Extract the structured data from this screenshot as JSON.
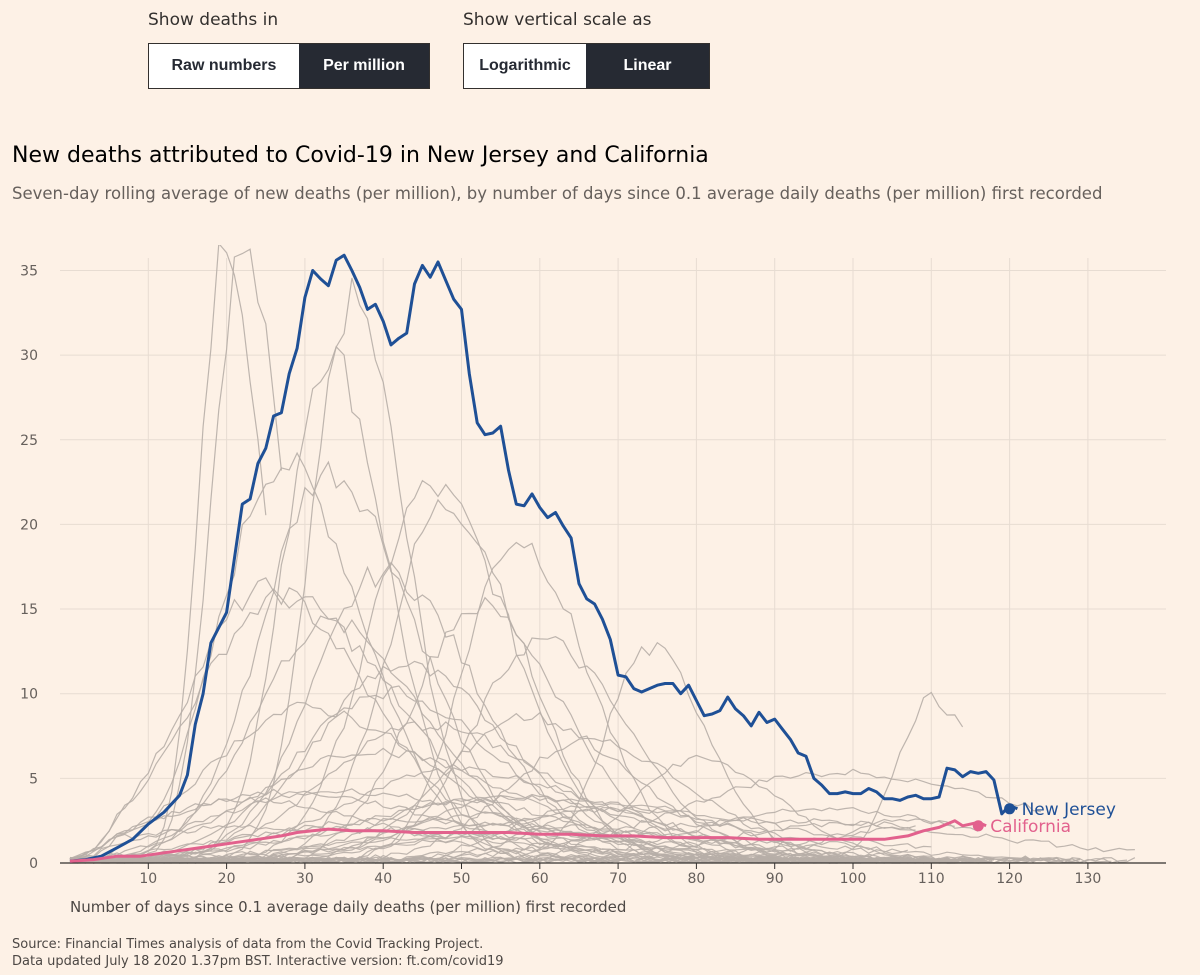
{
  "controls": {
    "deaths": {
      "label": "Show deaths in",
      "options": [
        "Raw numbers",
        "Per million"
      ],
      "selected": "Per million"
    },
    "scale": {
      "label": "Show vertical scale as",
      "options": [
        "Logarithmic",
        "Linear"
      ],
      "selected": "Linear"
    }
  },
  "colors": {
    "background": "#fdf1e6",
    "new_jersey": "#1f5096",
    "california": "#e2618d",
    "other_states": "#b7aea7",
    "selected_button": "#262a33"
  },
  "chart_data": {
    "type": "line",
    "title": "New deaths attributed to Covid-19 in New Jersey and California",
    "subtitle": "Seven-day rolling average of new deaths (per million), by number of days since 0.1 average daily deaths (per million) first recorded",
    "xlabel": "Number of days since 0.1 average daily deaths (per million) first recorded",
    "ylabel": "",
    "xlim": [
      0,
      140
    ],
    "ylim": [
      0,
      35
    ],
    "x_ticks": [
      10,
      20,
      30,
      40,
      50,
      60,
      70,
      80,
      90,
      100,
      110,
      120,
      130
    ],
    "y_ticks": [
      0,
      5,
      10,
      15,
      20,
      25,
      30,
      35
    ],
    "grid": true,
    "series": [
      {
        "name": "New Jersey",
        "highlight": true,
        "color": "#1f5096",
        "points": [
          [
            0,
            0.1
          ],
          [
            2,
            0.2
          ],
          [
            4,
            0.4
          ],
          [
            6,
            0.9
          ],
          [
            8,
            1.4
          ],
          [
            10,
            2.3
          ],
          [
            12,
            3.0
          ],
          [
            14,
            4.0
          ],
          [
            15,
            5.2
          ],
          [
            16,
            8.2
          ],
          [
            17,
            10.0
          ],
          [
            18,
            13.0
          ],
          [
            20,
            14.8
          ],
          [
            22,
            21.2
          ],
          [
            23,
            21.5
          ],
          [
            24,
            23.6
          ],
          [
            25,
            24.5
          ],
          [
            26,
            26.4
          ],
          [
            27,
            26.6
          ],
          [
            28,
            28.9
          ],
          [
            29,
            30.4
          ],
          [
            30,
            33.4
          ],
          [
            31,
            35.0
          ],
          [
            32,
            34.5
          ],
          [
            33,
            34.1
          ],
          [
            34,
            35.6
          ],
          [
            35,
            35.9
          ],
          [
            36,
            35.0
          ],
          [
            37,
            34.0
          ],
          [
            38,
            32.7
          ],
          [
            39,
            33.0
          ],
          [
            40,
            32.0
          ],
          [
            41,
            30.6
          ],
          [
            42,
            31.0
          ],
          [
            43,
            31.3
          ],
          [
            44,
            34.2
          ],
          [
            45,
            35.3
          ],
          [
            46,
            34.6
          ],
          [
            47,
            35.5
          ],
          [
            48,
            34.4
          ],
          [
            49,
            33.3
          ],
          [
            50,
            32.7
          ],
          [
            51,
            28.9
          ],
          [
            52,
            26.0
          ],
          [
            53,
            25.3
          ],
          [
            54,
            25.4
          ],
          [
            55,
            25.8
          ],
          [
            56,
            23.2
          ],
          [
            57,
            21.2
          ],
          [
            58,
            21.1
          ],
          [
            59,
            21.8
          ],
          [
            60,
            21.0
          ],
          [
            61,
            20.4
          ],
          [
            62,
            20.7
          ],
          [
            63,
            19.9
          ],
          [
            64,
            19.2
          ],
          [
            65,
            16.5
          ],
          [
            66,
            15.6
          ],
          [
            67,
            15.3
          ],
          [
            68,
            14.4
          ],
          [
            69,
            13.2
          ],
          [
            70,
            11.1
          ],
          [
            71,
            11.0
          ],
          [
            72,
            10.3
          ],
          [
            73,
            10.1
          ],
          [
            74,
            10.3
          ],
          [
            75,
            10.5
          ],
          [
            76,
            10.6
          ],
          [
            77,
            10.6
          ],
          [
            78,
            10.0
          ],
          [
            79,
            10.5
          ],
          [
            80,
            9.6
          ],
          [
            81,
            8.7
          ],
          [
            82,
            8.8
          ],
          [
            83,
            9.0
          ],
          [
            84,
            9.8
          ],
          [
            85,
            9.1
          ],
          [
            86,
            8.7
          ],
          [
            87,
            8.1
          ],
          [
            88,
            8.9
          ],
          [
            89,
            8.3
          ],
          [
            90,
            8.5
          ],
          [
            91,
            7.9
          ],
          [
            92,
            7.3
          ],
          [
            93,
            6.5
          ],
          [
            94,
            6.3
          ],
          [
            95,
            5.0
          ],
          [
            96,
            4.6
          ],
          [
            97,
            4.1
          ],
          [
            98,
            4.1
          ],
          [
            99,
            4.2
          ],
          [
            100,
            4.1
          ],
          [
            101,
            4.1
          ],
          [
            102,
            4.4
          ],
          [
            103,
            4.2
          ],
          [
            104,
            3.8
          ],
          [
            105,
            3.8
          ],
          [
            106,
            3.7
          ],
          [
            107,
            3.9
          ],
          [
            108,
            4.0
          ],
          [
            109,
            3.8
          ],
          [
            110,
            3.8
          ],
          [
            111,
            3.9
          ],
          [
            112,
            5.6
          ],
          [
            113,
            5.5
          ],
          [
            114,
            5.1
          ],
          [
            115,
            5.4
          ],
          [
            116,
            5.3
          ],
          [
            117,
            5.4
          ],
          [
            118,
            4.9
          ],
          [
            119,
            2.9
          ],
          [
            120,
            3.4
          ],
          [
            121,
            3.2
          ]
        ]
      },
      {
        "name": "California",
        "highlight": true,
        "color": "#e2618d",
        "points": [
          [
            0,
            0.1
          ],
          [
            3,
            0.2
          ],
          [
            6,
            0.4
          ],
          [
            9,
            0.4
          ],
          [
            12,
            0.6
          ],
          [
            15,
            0.8
          ],
          [
            18,
            1.0
          ],
          [
            21,
            1.2
          ],
          [
            24,
            1.4
          ],
          [
            27,
            1.6
          ],
          [
            29,
            1.8
          ],
          [
            31,
            1.9
          ],
          [
            33,
            2.0
          ],
          [
            36,
            1.9
          ],
          [
            40,
            1.9
          ],
          [
            44,
            1.8
          ],
          [
            48,
            1.8
          ],
          [
            52,
            1.8
          ],
          [
            56,
            1.8
          ],
          [
            60,
            1.7
          ],
          [
            64,
            1.7
          ],
          [
            68,
            1.6
          ],
          [
            72,
            1.6
          ],
          [
            76,
            1.5
          ],
          [
            80,
            1.5
          ],
          [
            84,
            1.5
          ],
          [
            88,
            1.4
          ],
          [
            92,
            1.4
          ],
          [
            96,
            1.4
          ],
          [
            100,
            1.4
          ],
          [
            104,
            1.4
          ],
          [
            107,
            1.6
          ],
          [
            109,
            1.9
          ],
          [
            111,
            2.1
          ],
          [
            113,
            2.5
          ],
          [
            114,
            2.2
          ],
          [
            116,
            2.4
          ],
          [
            117,
            2.2
          ]
        ]
      }
    ],
    "end_labels": {
      "new_jersey": "New Jersey",
      "california": "California"
    },
    "background_series_count": 48
  },
  "footer": {
    "source": "Source: Financial Times analysis of data from the Covid Tracking Project.",
    "updated": "Data updated July 18 2020 1.37pm BST. Interactive version: ft.com/covid19"
  }
}
